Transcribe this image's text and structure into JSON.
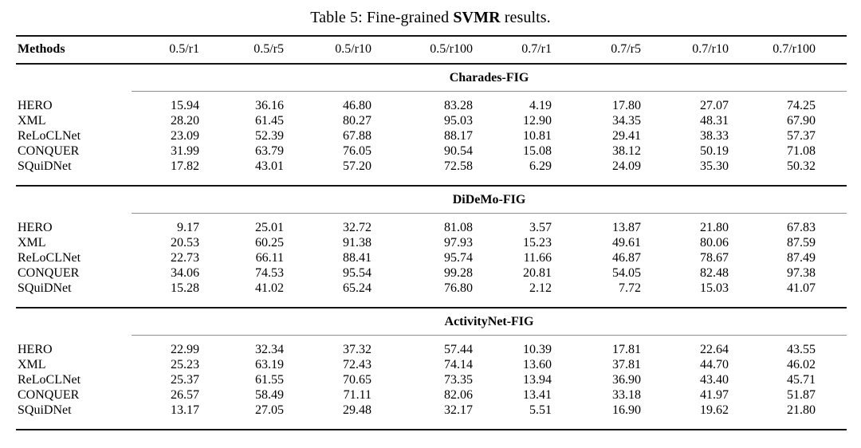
{
  "caption": {
    "prefix": "Table 5: Fine-grained ",
    "bold_term": "SVMR",
    "suffix": " results."
  },
  "table": {
    "columns": [
      "Methods",
      "0.5/r1",
      "0.5/r5",
      "0.5/r10",
      "0.5/r100",
      "0.7/r1",
      "0.7/r5",
      "0.7/r10",
      "0.7/r100"
    ],
    "sections": [
      {
        "name": "Charades-FIG",
        "rows": [
          {
            "method": "HERO",
            "values": [
              "15.94",
              "36.16",
              "46.80",
              "83.28",
              "4.19",
              "17.80",
              "27.07",
              "74.25"
            ]
          },
          {
            "method": "XML",
            "values": [
              "28.20",
              "61.45",
              "80.27",
              "95.03",
              "12.90",
              "34.35",
              "48.31",
              "67.90"
            ]
          },
          {
            "method": "ReLoCLNet",
            "values": [
              "23.09",
              "52.39",
              "67.88",
              "88.17",
              "10.81",
              "29.41",
              "38.33",
              "57.37"
            ]
          },
          {
            "method": "CONQUER",
            "values": [
              "31.99",
              "63.79",
              "76.05",
              "90.54",
              "15.08",
              "38.12",
              "50.19",
              "71.08"
            ]
          },
          {
            "method": "SQuiDNet",
            "values": [
              "17.82",
              "43.01",
              "57.20",
              "72.58",
              "6.29",
              "24.09",
              "35.30",
              "50.32"
            ]
          }
        ]
      },
      {
        "name": "DiDeMo-FIG",
        "rows": [
          {
            "method": "HERO",
            "values": [
              "9.17",
              "25.01",
              "32.72",
              "81.08",
              "3.57",
              "13.87",
              "21.80",
              "67.83"
            ]
          },
          {
            "method": "XML",
            "values": [
              "20.53",
              "60.25",
              "91.38",
              "97.93",
              "15.23",
              "49.61",
              "80.06",
              "87.59"
            ]
          },
          {
            "method": "ReLoCLNet",
            "values": [
              "22.73",
              "66.11",
              "88.41",
              "95.74",
              "11.66",
              "46.87",
              "78.67",
              "87.49"
            ]
          },
          {
            "method": "CONQUER",
            "values": [
              "34.06",
              "74.53",
              "95.54",
              "99.28",
              "20.81",
              "54.05",
              "82.48",
              "97.38"
            ]
          },
          {
            "method": "SQuiDNet",
            "values": [
              "15.28",
              "41.02",
              "65.24",
              "76.80",
              "2.12",
              "7.72",
              "15.03",
              "41.07"
            ]
          }
        ]
      },
      {
        "name": "ActivityNet-FIG",
        "rows": [
          {
            "method": "HERO",
            "values": [
              "22.99",
              "32.34",
              "37.32",
              "57.44",
              "10.39",
              "17.81",
              "22.64",
              "43.55"
            ]
          },
          {
            "method": "XML",
            "values": [
              "25.23",
              "63.19",
              "72.43",
              "74.14",
              "13.60",
              "37.81",
              "44.70",
              "46.02"
            ]
          },
          {
            "method": "ReLoCLNet",
            "values": [
              "25.37",
              "61.55",
              "70.65",
              "73.35",
              "13.94",
              "36.90",
              "43.40",
              "45.71"
            ]
          },
          {
            "method": "CONQUER",
            "values": [
              "26.57",
              "58.49",
              "71.11",
              "82.06",
              "13.41",
              "33.18",
              "41.97",
              "51.87"
            ]
          },
          {
            "method": "SQuiDNet",
            "values": [
              "13.17",
              "27.05",
              "29.48",
              "32.17",
              "5.51",
              "16.90",
              "19.62",
              "21.80"
            ]
          }
        ]
      }
    ]
  },
  "colors": {
    "rule": "#141414",
    "cmidrule": "#8f8f8f",
    "text": "#000000",
    "background": "#ffffff"
  }
}
